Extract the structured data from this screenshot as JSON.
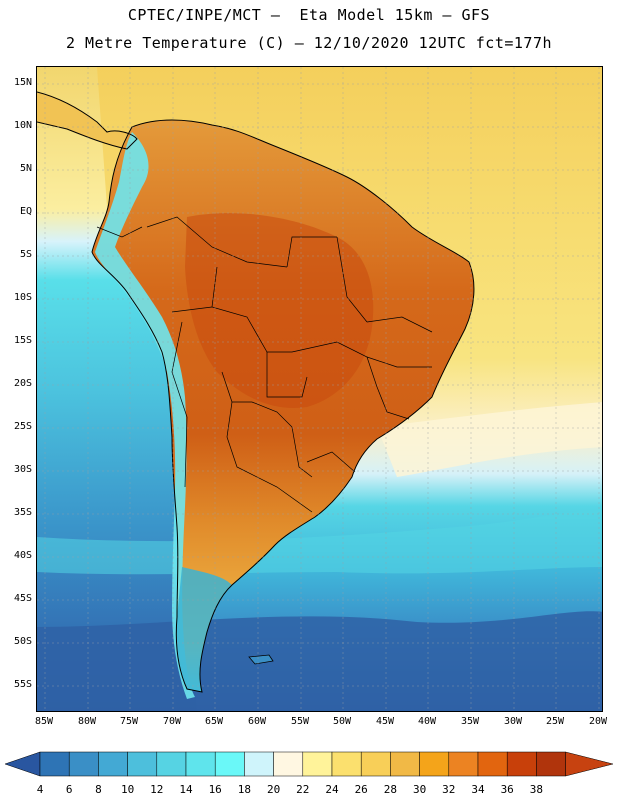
{
  "title": {
    "line1": "CPTEC/INPE/MCT –  Eta Model 15km – GFS",
    "line2": "2 Metre Temperature (C) – 12/10/2020 12UTC fct=177h"
  },
  "map": {
    "lat_labels": [
      "15N",
      "10N",
      "5N",
      "EQ",
      "5S",
      "10S",
      "15S",
      "20S",
      "25S",
      "30S",
      "35S",
      "40S",
      "45S",
      "50S",
      "55S"
    ],
    "lon_labels": [
      "85W",
      "80W",
      "75W",
      "70W",
      "65W",
      "60W",
      "55W",
      "50W",
      "45W",
      "40W",
      "35W",
      "30W",
      "25W",
      "20W"
    ],
    "colors": {
      "ocean_cold": "#2f62a6",
      "ocean_mid": "#3a9ccc",
      "ocean_cool": "#54d6e4",
      "ocean_light": "#d8f2fb",
      "ocean_warm": "#f3dc73",
      "land_hot": "#d66c1c",
      "land_warm": "#e8a43c",
      "andes": "#6fe8f0",
      "patagonia": "#3bb3d4"
    }
  },
  "colorbar": {
    "labels": [
      "4",
      "6",
      "8",
      "10",
      "12",
      "14",
      "16",
      "18",
      "20",
      "22",
      "24",
      "26",
      "28",
      "30",
      "32",
      "34",
      "36",
      "38"
    ],
    "colors": [
      "#2956a0",
      "#2e74b5",
      "#3a8fc6",
      "#43a9d4",
      "#4dbfdc",
      "#56d3e3",
      "#5fe4ec",
      "#6af8f8",
      "#cff4fb",
      "#fff7e2",
      "#fff39a",
      "#fbe06e",
      "#f8cf58",
      "#f1b946",
      "#f4a41a",
      "#ec8322",
      "#e2650f",
      "#c8400a",
      "#b0340c",
      "#c74210"
    ]
  }
}
